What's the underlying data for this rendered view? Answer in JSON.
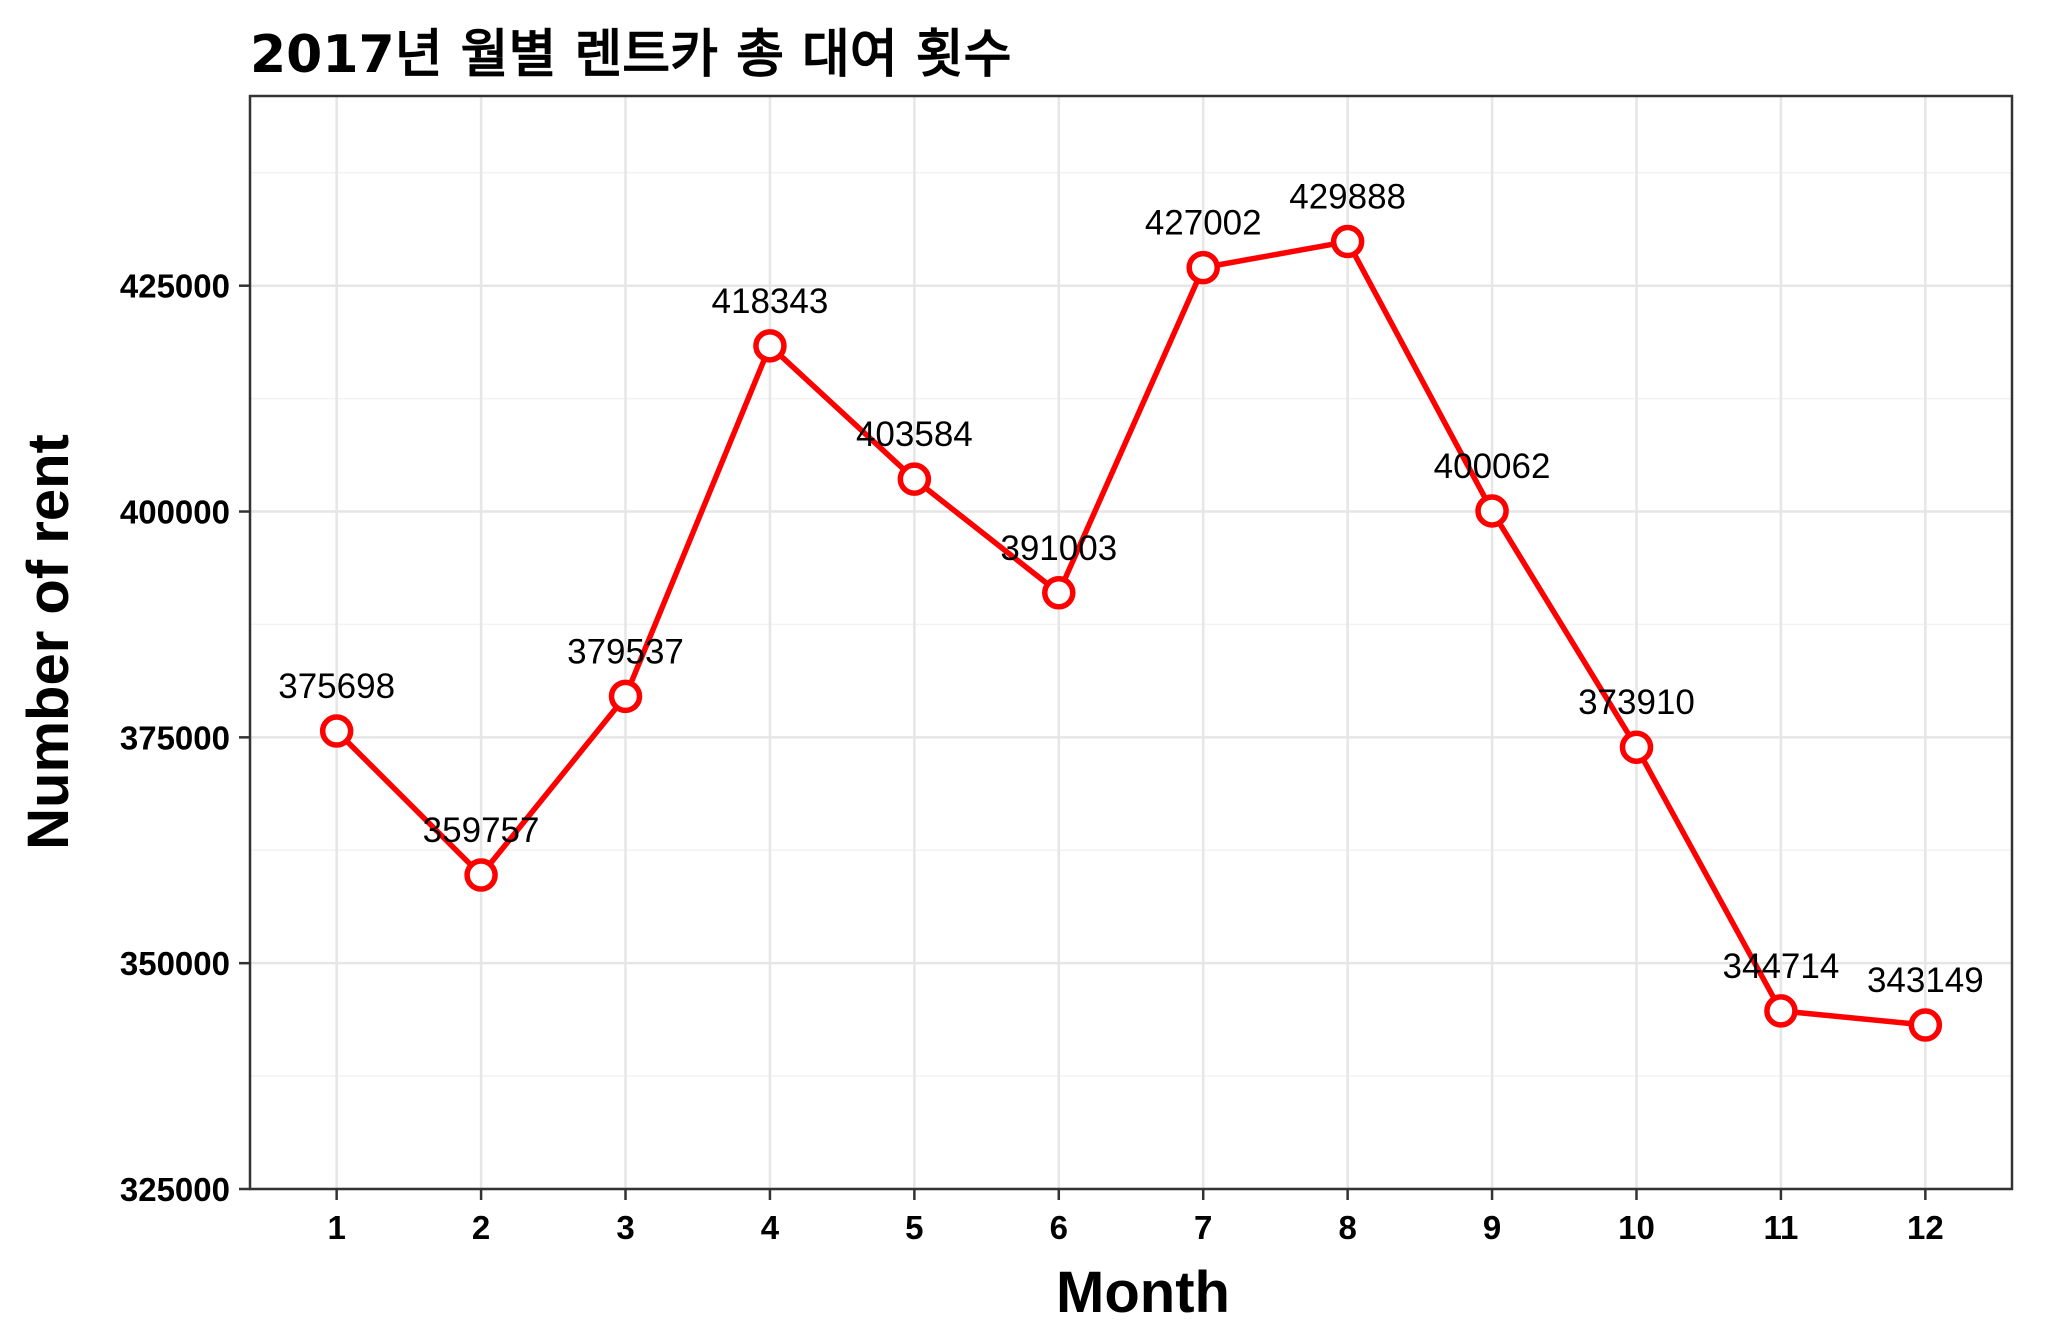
{
  "chart_data": {
    "type": "line",
    "title": "2017년 월별 렌트카 총 대여 횟수",
    "xlabel": "Month",
    "ylabel": "Number of rent",
    "x": [
      1,
      2,
      3,
      4,
      5,
      6,
      7,
      8,
      9,
      10,
      11,
      12
    ],
    "y": [
      375698,
      359757,
      379537,
      418343,
      403584,
      391003,
      427002,
      429888,
      400062,
      373910,
      344714,
      343149
    ],
    "data_labels": [
      "375698",
      "359757",
      "379537",
      "418343",
      "403584",
      "391003",
      "427002",
      "429888",
      "400062",
      "373910",
      "344714",
      "343149"
    ],
    "x_ticks": [
      "1",
      "2",
      "3",
      "4",
      "5",
      "6",
      "7",
      "8",
      "9",
      "10",
      "11",
      "12"
    ],
    "y_ticks": [
      325000,
      350000,
      375000,
      400000,
      425000
    ],
    "y_tick_labels": [
      "325000",
      "350000",
      "375000",
      "400000",
      "425000"
    ],
    "xlim": [
      0.4,
      12.6
    ],
    "ylim": [
      325000,
      446000
    ],
    "grid": true,
    "legend": "none",
    "colors": {
      "series": "#ff0000",
      "marker_fill": "#ffffff"
    }
  }
}
